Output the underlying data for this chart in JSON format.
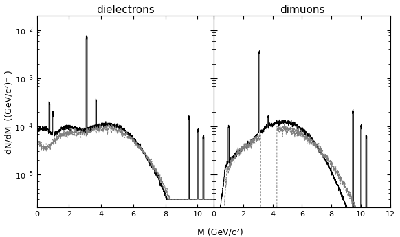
{
  "title_left": "dielectrons",
  "title_right": "dimuons",
  "xlabel": "M (GeV/c²)",
  "ylabel": "dN/dM  ((GeV/c²)⁻¹)",
  "xlim_left": [
    0,
    11
  ],
  "xlim_right": [
    0,
    12
  ],
  "ylim": [
    2e-06,
    0.02
  ],
  "xticks_left": [
    0,
    2,
    4,
    6,
    8,
    10
  ],
  "xticks_right": [
    0,
    2,
    4,
    6,
    8,
    10,
    12
  ],
  "ytick_labels": [
    "10$^{-5}$",
    "10$^{-4}$",
    "10$^{-3}$",
    "10$^{-2}$"
  ],
  "ytick_vals": [
    1e-05,
    0.0001,
    0.001,
    0.01
  ],
  "background_color": "#ffffff",
  "line_color": "#000000",
  "dashed_color": "#888888",
  "title_fontsize": 11,
  "label_fontsize": 9,
  "tick_fontsize": 8
}
